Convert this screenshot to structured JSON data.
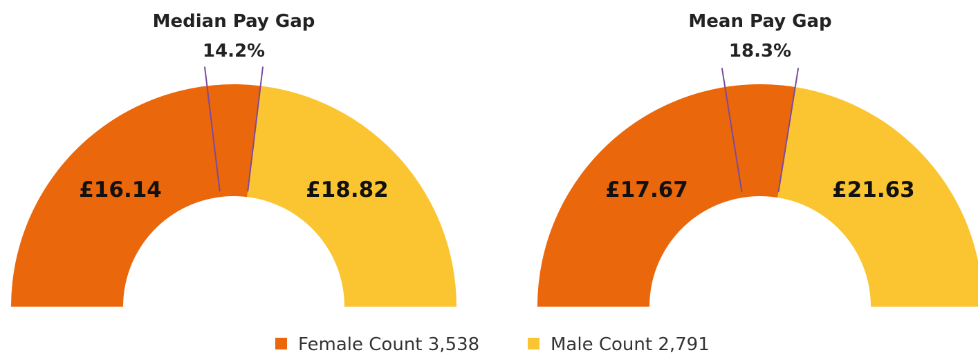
{
  "chart_data": [
    {
      "type": "half-donut",
      "title": "Median Pay Gap",
      "gap": 14.2,
      "gap_label": "14.2%",
      "values": [
        16.14,
        18.82
      ],
      "value_labels": [
        "£16.14",
        "£18.82"
      ],
      "colors": [
        "#ea670c",
        "#fbc531"
      ],
      "divider_color": "#7b4a9e"
    },
    {
      "type": "half-donut",
      "title": "Mean Pay Gap",
      "gap": 18.3,
      "gap_label": "18.3%",
      "values": [
        17.67,
        21.63
      ],
      "value_labels": [
        "£17.67",
        "£21.63"
      ],
      "colors": [
        "#ea670c",
        "#fbc531"
      ],
      "divider_color": "#7b4a9e"
    }
  ],
  "legend": [
    {
      "name": "Female Count",
      "value": 3538,
      "value_label": "3,538",
      "color": "#ea670c"
    },
    {
      "name": "Male Count",
      "value": 2791,
      "value_label": "2,791",
      "color": "#fbc531"
    }
  ]
}
